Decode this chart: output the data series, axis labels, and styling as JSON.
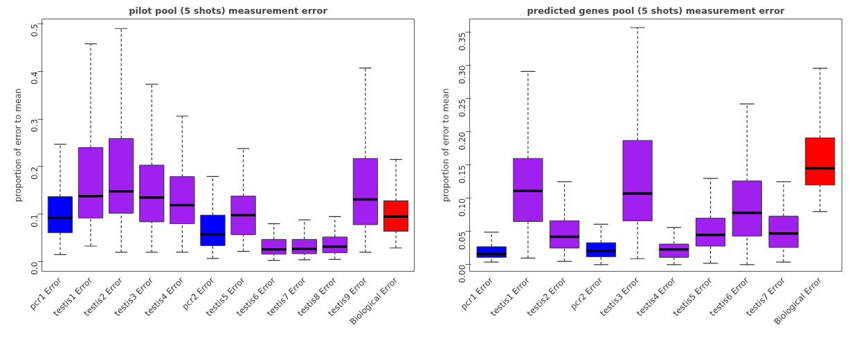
{
  "chart_data": [
    {
      "type": "box",
      "title": "pilot pool (5 shots) measurement error",
      "ylabel": "proportion of error to mean",
      "categories": [
        "pcr1 Error",
        "testis1 Error",
        "testis2 Error",
        "testis3 Error",
        "testis4 Error",
        "pcr2 Error",
        "testis5 Error",
        "testis6 Error",
        "testis7 Error",
        "testis8 Error",
        "testis9 Error",
        "Biological Error"
      ],
      "colors": [
        "#0000ff",
        "#a020f0",
        "#a020f0",
        "#a020f0",
        "#a020f0",
        "#0000ff",
        "#a020f0",
        "#a020f0",
        "#a020f0",
        "#a020f0",
        "#a020f0",
        "#ff0000"
      ],
      "boxes": [
        {
          "low": 0.015,
          "q1": 0.061,
          "median": 0.093,
          "q3": 0.137,
          "high": 0.247
        },
        {
          "low": 0.033,
          "q1": 0.092,
          "median": 0.138,
          "q3": 0.24,
          "high": 0.458
        },
        {
          "low": 0.02,
          "q1": 0.102,
          "median": 0.148,
          "q3": 0.259,
          "high": 0.49
        },
        {
          "low": 0.02,
          "q1": 0.084,
          "median": 0.135,
          "q3": 0.203,
          "high": 0.373
        },
        {
          "low": 0.02,
          "q1": 0.08,
          "median": 0.119,
          "q3": 0.179,
          "high": 0.306
        },
        {
          "low": 0.007,
          "q1": 0.034,
          "median": 0.058,
          "q3": 0.098,
          "high": 0.179
        },
        {
          "low": 0.022,
          "q1": 0.057,
          "median": 0.098,
          "q3": 0.138,
          "high": 0.238
        },
        {
          "low": 0.003,
          "q1": 0.016,
          "median": 0.026,
          "q3": 0.047,
          "high": 0.08
        },
        {
          "low": 0.004,
          "q1": 0.017,
          "median": 0.027,
          "q3": 0.047,
          "high": 0.088
        },
        {
          "low": 0.005,
          "q1": 0.019,
          "median": 0.032,
          "q3": 0.052,
          "high": 0.095
        },
        {
          "low": 0.02,
          "q1": 0.078,
          "median": 0.131,
          "q3": 0.217,
          "high": 0.407
        },
        {
          "low": 0.029,
          "q1": 0.064,
          "median": 0.095,
          "q3": 0.128,
          "high": 0.215
        }
      ],
      "ylim": [
        -0.02,
        0.51
      ],
      "yticks": [
        {
          "value": 0,
          "label": "0.0"
        },
        {
          "value": 0.1,
          "label": "0.1"
        },
        {
          "value": 0.2,
          "label": "0.2"
        },
        {
          "value": 0.3,
          "label": "0.3"
        },
        {
          "value": 0.4,
          "label": "0.4"
        },
        {
          "value": 0.5,
          "label": "0.5"
        }
      ],
      "grid": false
    },
    {
      "type": "box",
      "title": "predicted genes pool (5 shots) measurement error",
      "ylabel": "proportion of error to mean",
      "categories": [
        "pcr1 Error",
        "testis1 Error",
        "testis2 Error",
        "pcr2 Error",
        "testis3 Error",
        "testis4 Error",
        "testis5 Error",
        "testis6 Error",
        "testis7 Error",
        "Biological Error"
      ],
      "colors": [
        "#0000ff",
        "#a020f0",
        "#a020f0",
        "#0000ff",
        "#a020f0",
        "#a020f0",
        "#a020f0",
        "#a020f0",
        "#a020f0",
        "#ff0000"
      ],
      "boxes": [
        {
          "low": 0.004,
          "q1": 0.011,
          "median": 0.016,
          "q3": 0.027,
          "high": 0.049
        },
        {
          "low": 0.01,
          "q1": 0.065,
          "median": 0.111,
          "q3": 0.16,
          "high": 0.291
        },
        {
          "low": 0.005,
          "q1": 0.025,
          "median": 0.042,
          "q3": 0.066,
          "high": 0.125
        },
        {
          "low": 0.0,
          "q1": 0.012,
          "median": 0.021,
          "q3": 0.033,
          "high": 0.061
        },
        {
          "low": 0.009,
          "q1": 0.066,
          "median": 0.107,
          "q3": 0.187,
          "high": 0.357
        },
        {
          "low": 0.0,
          "q1": 0.011,
          "median": 0.023,
          "q3": 0.031,
          "high": 0.056
        },
        {
          "low": 0.002,
          "q1": 0.028,
          "median": 0.045,
          "q3": 0.07,
          "high": 0.13
        },
        {
          "low": 0.0,
          "q1": 0.043,
          "median": 0.078,
          "q3": 0.126,
          "high": 0.242
        },
        {
          "low": 0.004,
          "q1": 0.026,
          "median": 0.047,
          "q3": 0.073,
          "high": 0.125
        },
        {
          "low": 0.08,
          "q1": 0.12,
          "median": 0.145,
          "q3": 0.191,
          "high": 0.296
        }
      ],
      "ylim": [
        -0.01,
        0.37
      ],
      "yticks": [
        {
          "value": 0,
          "label": "0.00"
        },
        {
          "value": 0.05,
          "label": "0.05"
        },
        {
          "value": 0.1,
          "label": "0.10"
        },
        {
          "value": 0.15,
          "label": "0.15"
        },
        {
          "value": 0.2,
          "label": "0.20"
        },
        {
          "value": 0.25,
          "label": "0.25"
        },
        {
          "value": 0.3,
          "label": "0.30"
        },
        {
          "value": 0.35,
          "label": "0.35"
        }
      ],
      "grid": false
    }
  ]
}
